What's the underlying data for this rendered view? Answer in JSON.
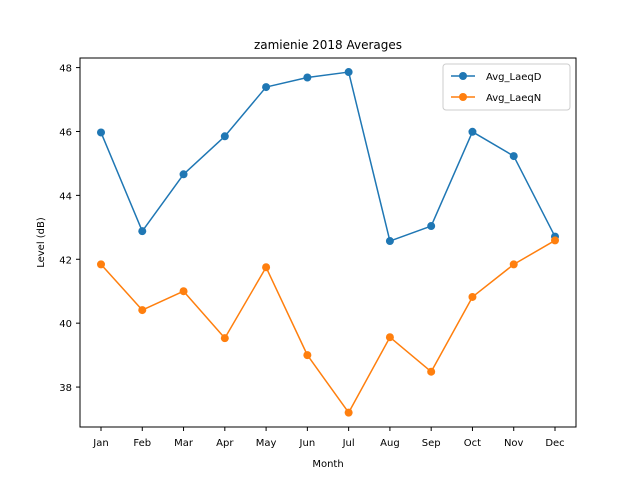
{
  "chart_data": {
    "type": "line",
    "title": "zamienie 2018 Averages",
    "xlabel": "Month",
    "ylabel": "Level (dB)",
    "categories": [
      "Jan",
      "Feb",
      "Mar",
      "Apr",
      "May",
      "Jun",
      "Jul",
      "Aug",
      "Sep",
      "Oct",
      "Nov",
      "Dec"
    ],
    "series": [
      {
        "name": "Avg_LaeqD",
        "color": "#1f77b4",
        "values": [
          45.97,
          42.88,
          44.66,
          45.85,
          47.39,
          47.69,
          47.86,
          42.57,
          43.04,
          45.99,
          45.23,
          42.71
        ]
      },
      {
        "name": "Avg_LaeqN",
        "color": "#ff7f0e",
        "values": [
          41.84,
          40.41,
          41.0,
          39.53,
          41.75,
          39.0,
          37.2,
          39.56,
          38.48,
          40.82,
          41.84,
          42.59
        ]
      }
    ],
    "ylim": [
      36.75,
      48.3
    ],
    "yticks": [
      38,
      40,
      42,
      44,
      46,
      48
    ],
    "grid": false,
    "legend_position": "top-right"
  }
}
